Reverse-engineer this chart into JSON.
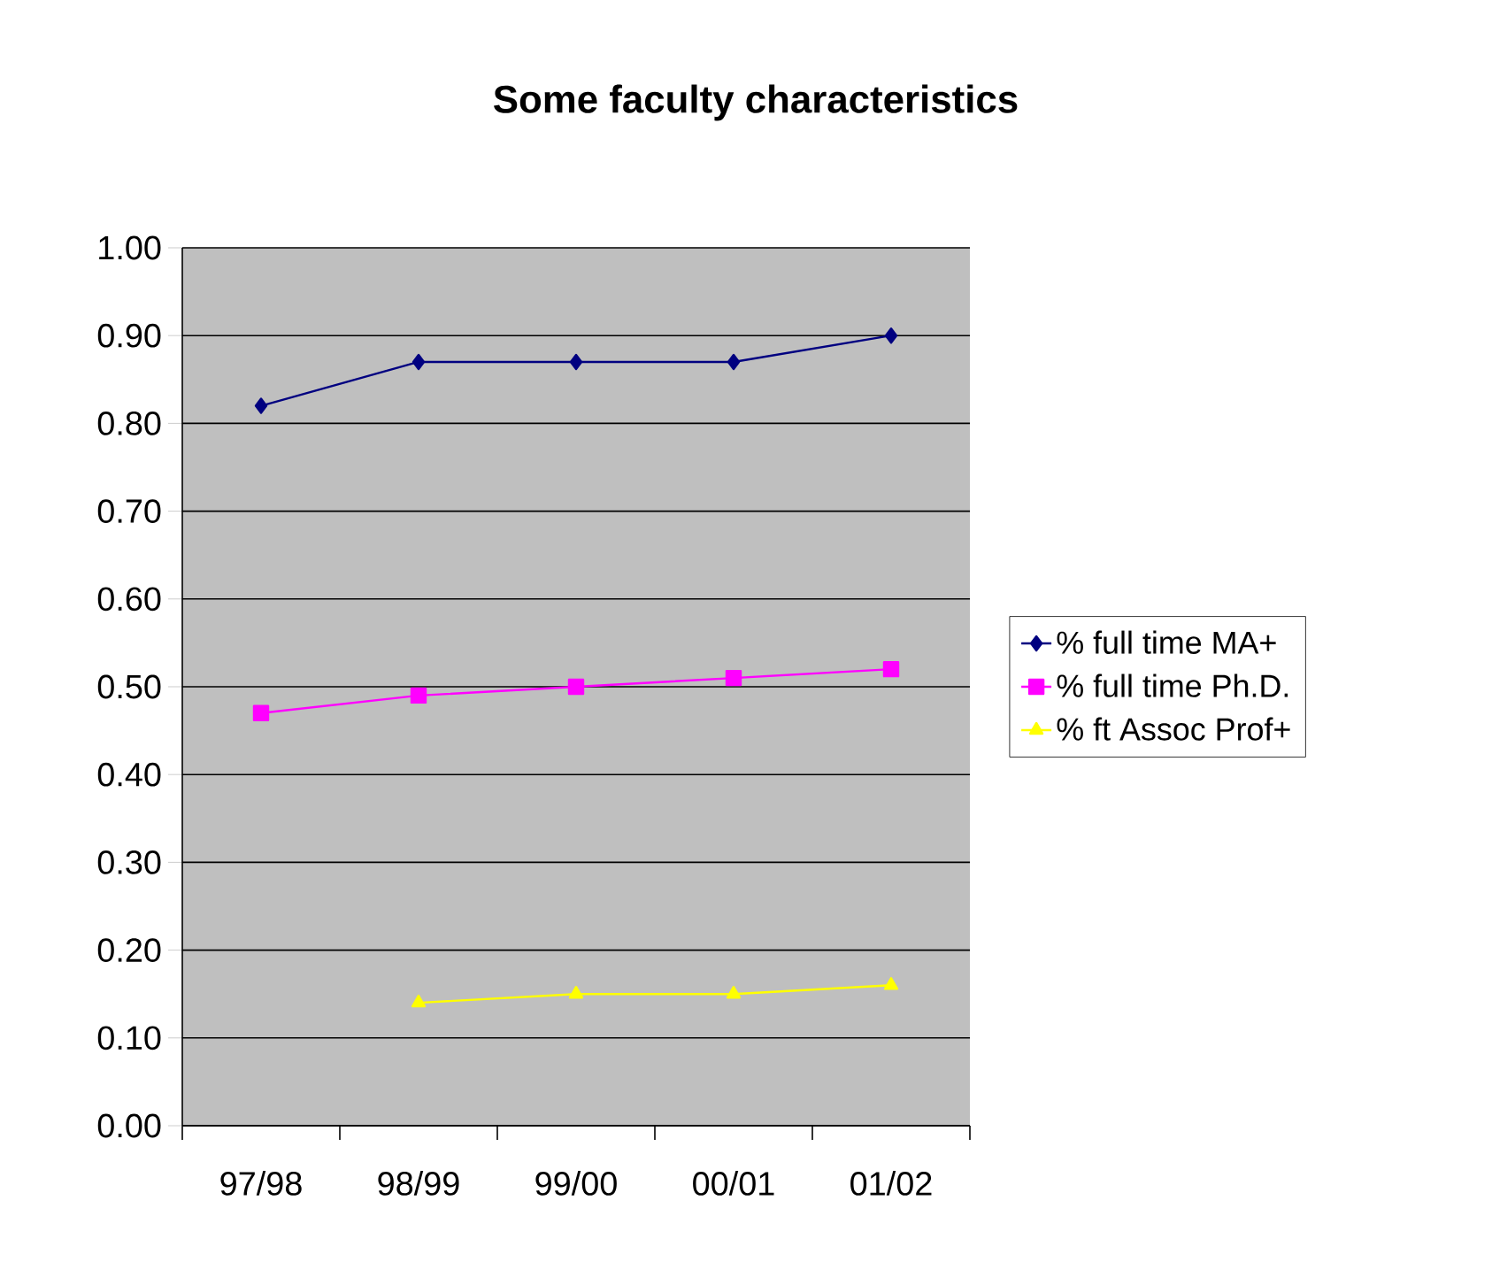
{
  "chart_data": {
    "type": "line",
    "title": "Some faculty characteristics",
    "categories": [
      "97/98",
      "98/99",
      "99/00",
      "00/01",
      "01/02"
    ],
    "series": [
      {
        "name": "%  full time MA+",
        "color": "#000080",
        "marker": "diamond",
        "values": [
          0.82,
          0.87,
          0.87,
          0.87,
          0.9
        ]
      },
      {
        "name": "% full time Ph.D.",
        "color": "#ff00ff",
        "marker": "square",
        "values": [
          0.47,
          0.49,
          0.5,
          0.51,
          0.52
        ]
      },
      {
        "name": "% ft Assoc Prof+",
        "color": "#ffff00",
        "marker": "triangle",
        "values": [
          null,
          0.14,
          0.15,
          0.15,
          0.16
        ]
      }
    ],
    "ylim": [
      0,
      1
    ],
    "yticks": [
      {
        "value": 0,
        "label": "0.00"
      },
      {
        "value": 0.1,
        "label": "0.10"
      },
      {
        "value": 0.2,
        "label": "0.20"
      },
      {
        "value": 0.3,
        "label": "0.30"
      },
      {
        "value": 0.4,
        "label": "0.40"
      },
      {
        "value": 0.5,
        "label": "0.50"
      },
      {
        "value": 0.6,
        "label": "0.60"
      },
      {
        "value": 0.7,
        "label": "0.70"
      },
      {
        "value": 0.8,
        "label": "0.80"
      },
      {
        "value": 0.9,
        "label": "0.90"
      },
      {
        "value": 1,
        "label": "1.00"
      }
    ],
    "grid": "y",
    "legend": "right",
    "line_style": "solid"
  }
}
